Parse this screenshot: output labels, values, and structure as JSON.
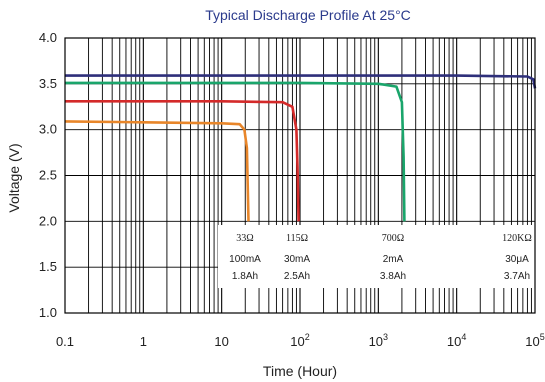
{
  "chart_data": {
    "type": "line",
    "title": "Typical Discharge Profile At 25°C",
    "xlabel": "Time (Hour)",
    "ylabel": "Voltage (V)",
    "xscale": "log",
    "xlim": [
      0.1,
      100000
    ],
    "ylim": [
      1.0,
      4.0
    ],
    "grid": true,
    "x_ticks": [
      {
        "value": 0.1,
        "label": "0.1"
      },
      {
        "value": 1,
        "label": "1"
      },
      {
        "value": 10,
        "label": "10"
      },
      {
        "value": 100,
        "label": "10",
        "sup": "2"
      },
      {
        "value": 1000,
        "label": "10",
        "sup": "3"
      },
      {
        "value": 10000,
        "label": "10",
        "sup": "4"
      },
      {
        "value": 100000,
        "label": "10",
        "sup": "5"
      }
    ],
    "y_ticks": [
      "1.0",
      "1.5",
      "2.0",
      "2.5",
      "3.0",
      "3.5",
      "4.0"
    ],
    "series": [
      {
        "color": "#e8862a",
        "x": [
          0.1,
          1,
          10,
          17,
          19.5,
          21,
          21.5,
          22
        ],
        "y": [
          3.09,
          3.08,
          3.07,
          3.06,
          3.0,
          2.8,
          2.4,
          2.0
        ]
      },
      {
        "color": "#d42a2a",
        "x": [
          0.1,
          1,
          10,
          60,
          80,
          90,
          93,
          96
        ],
        "y": [
          3.31,
          3.31,
          3.31,
          3.3,
          3.25,
          3.0,
          2.6,
          2.0
        ]
      },
      {
        "color": "#1aa56b",
        "x": [
          0.1,
          1,
          10,
          100,
          1000,
          1700,
          2000,
          2100,
          2150
        ],
        "y": [
          3.51,
          3.51,
          3.51,
          3.51,
          3.5,
          3.47,
          3.3,
          2.7,
          2.0
        ]
      },
      {
        "color": "#2e2f7a",
        "x": [
          0.1,
          1,
          10,
          100,
          1000,
          10000,
          80000,
          95000,
          100000
        ],
        "y": [
          3.59,
          3.59,
          3.59,
          3.59,
          3.59,
          3.59,
          3.58,
          3.55,
          3.45
        ]
      }
    ],
    "annotations": [
      {
        "resistance": "33Ω",
        "current": "100mA",
        "capacity": "1.8Ah"
      },
      {
        "resistance": "115Ω",
        "current": "30mA",
        "capacity": "2.5Ah"
      },
      {
        "resistance": "700Ω",
        "current": "2mA",
        "capacity": "3.8Ah"
      },
      {
        "resistance": "120KΩ",
        "current": "30μA",
        "capacity": "3.7Ah"
      }
    ]
  }
}
